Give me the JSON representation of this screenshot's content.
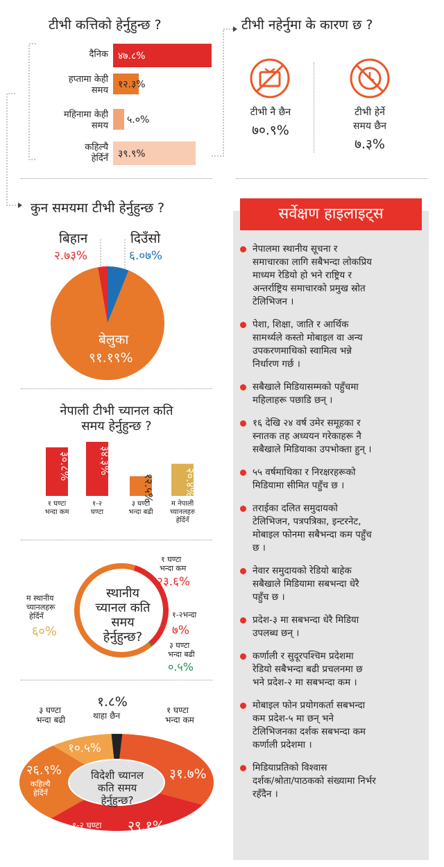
{
  "colors": {
    "red": "#e02a2a",
    "orange": "#e8782a",
    "light_orange": "#f2a574",
    "pale_orange": "#f8ccb3",
    "blue": "#1f6fb5",
    "gold": "#dcb050",
    "green": "#2a8a5a",
    "black": "#222222",
    "panel_red": "#e63228"
  },
  "q_frequency": {
    "title": "टीभी कत्तिको हेर्नुहुन्छ ?",
    "icon": "chevron-right-icon"
  },
  "q_reasons": {
    "title": "टीभी नहेर्नुमा के कारण छ ?",
    "items": [
      {
        "label": "टीभी नै छैन",
        "value": "७०.९%",
        "icon": "no-tv-icon"
      },
      {
        "label_line1": "टीभी हेर्ने",
        "label_line2": "समय छैन",
        "value": "७.३%",
        "icon": "no-clock-icon"
      }
    ]
  },
  "q_time": {
    "title": "कुन समयमा टीभी हेर्नुहुन्छ ?",
    "labels": [
      {
        "name": "बिहान",
        "value": "२.७३%"
      },
      {
        "name": "दिउँसो",
        "value": "६.०७%"
      },
      {
        "name": "बेलुका",
        "value": "९१.१९%"
      }
    ]
  },
  "q_nepali": {
    "title_line1": "नेपाली टीभी च्यानल कति",
    "title_line2": "समय हेर्नुहुन्छ ?"
  },
  "q_local": {
    "center": [
      "स्थानीय",
      "च्यानल कति",
      "समय",
      "हेर्नुहुन्छ?"
    ],
    "labels": [
      {
        "name_line1": "१ घण्टा",
        "name_line2": "भन्दा कम",
        "value": "२३.६%"
      },
      {
        "name_line1": "१-२भन्दा",
        "name_line2": "",
        "value": "७%"
      },
      {
        "name_line1": "३ घण्टा",
        "name_line2": "भन्दा बढी",
        "value": "०.५%"
      },
      {
        "name_line1": "म स्थानीय",
        "name_line2": "च्यानलहरू",
        "name_line3": "हेर्दिनँ",
        "value": "६०%"
      }
    ]
  },
  "q_foreign": {
    "center": [
      "विदेशी च्यानल",
      "कति समय",
      "हेर्नुहुन्छ?"
    ],
    "labels": [
      {
        "name_line1": "१ घण्टा",
        "name_line2": "भन्दा कम",
        "value": "३१.७%"
      },
      {
        "name": "१-२ घण्टा",
        "value": "२९.१%"
      },
      {
        "name_line1": "कहिल्यै",
        "name_line2": "हेर्दिनँ",
        "value": "२६.९%"
      },
      {
        "name_line1": "३ घण्टा",
        "name_line2": "भन्दा बढी",
        "value": "१०.५%"
      },
      {
        "name": "थाहा छैन",
        "value": "१.८%"
      }
    ]
  },
  "highlights": {
    "title": "सर्वेक्षण हाइलाइट्स",
    "items": [
      [
        "नेपालमा स्थानीय सूचना र",
        "समाचारका लागि सबैभन्दा लोकप्रिय",
        "माध्यम रेडियो हो भने राष्ट्रिय र",
        "अन्तर्राष्ट्रिय समाचारको प्रमुख स्रोत",
        "टेलिभिजन ।"
      ],
      [
        "पेशा, शिक्षा, जाति र आर्थिक",
        "सामर्थ्यले कस्तो मोबाइल वा अन्य",
        "उपकरणमाथिको स्वामित्व भन्ने",
        "निर्धारण गर्छ ।"
      ],
      [
        "सबैखाले मिडियासम्मको पहुँचमा",
        "महिलाहरू पछाडि छन् ।"
      ],
      [
        "१६ देखि २४ वर्ष उमेर समूहका र",
        "स्नातक तह अध्ययन गरेकाहरू नै",
        "सबैखाले मिडियाका उपभोक्ता हुन् ।"
      ],
      [
        "५५ वर्षमाथिका र निरक्षरहरूको",
        "मिडियामा सीमित पहुँच छ ।"
      ],
      [
        "तराईका दलित समुदायको",
        "टेलिभिजन, पत्रपत्रिका, इन्टरनेट,",
        "मोबाइल फोनमा सबैभन्दा कम पहुँच",
        "छ ।"
      ],
      [
        "नेवार समुदायको रेडियो बाहेक",
        "सबैखाले मिडियामा सबभन्दा धेरै",
        "पहुँच छ ।"
      ],
      [
        "प्रदेश-३ मा सबभन्दा धेरै मिडिया",
        "उपलब्ध छन् ।"
      ],
      [
        "कर्णाली र सुदूरपश्चिम प्रदेशमा",
        "रेडियो सबैभन्दा बढी प्रचलनमा छ",
        "भने प्रदेश-२ मा सबभन्दा कम ।"
      ],
      [
        "मोबाइल फोन प्रयोगकर्ता सबभन्दा",
        "कम प्रदेश-५ मा छन् भने",
        "टेलिभिजनका दर्शक सबभन्दा कम",
        "कर्णाली प्रदेशमा ।"
      ],
      [
        "मिडियाप्रतिको विश्वास",
        "दर्शक/श्रोता/पाठकको संख्यामा निर्भर",
        "रहँदैन ।"
      ]
    ]
  },
  "chart_data": [
    {
      "type": "bar",
      "orientation": "horizontal",
      "categories": [
        "दैनिक",
        "हप्तामा केही समय",
        "महिनामा केही समय",
        "कहिल्यै हेर्दिनँ"
      ],
      "values": [
        47.8,
        12.3,
        5.0,
        39.9
      ],
      "value_labels": [
        "४७.८%",
        "१२.३%",
        "५.०%",
        "३९.९%"
      ],
      "colors": [
        "#e02a2a",
        "#e8782a",
        "#f2a574",
        "#f8ccb3"
      ]
    },
    {
      "type": "pie",
      "categories": [
        "बेलुका",
        "बिहान",
        "दिउँसो"
      ],
      "values": [
        91.19,
        2.73,
        6.07
      ],
      "colors": [
        "#e8782a",
        "#e02a2a",
        "#1f6fb5"
      ]
    },
    {
      "type": "bar",
      "orientation": "vertical",
      "categories": [
        [
          "१ घण्टा",
          "भन्दा कम"
        ],
        [
          "१-२",
          "घण्टा"
        ],
        [
          "३ घण्टा",
          "भन्दा बढी"
        ],
        [
          "म नेपाली",
          "च्यानलहरु",
          "हेर्दिनँ"
        ]
      ],
      "values": [
        30.8,
        34.3,
        12.5,
        20.4
      ],
      "value_labels": [
        "३०.८%",
        "३४.३%",
        "१२.५%",
        "२०.४%"
      ],
      "colors": [
        "#e02a2a",
        "#e02a2a",
        "#e8782a",
        "#dcb050"
      ]
    },
    {
      "type": "pie",
      "subtype": "donut",
      "categories": [
        "म स्थानीय च्यानलहरू हेर्दिनँ",
        "१ घण्टा भन्दा कम",
        "१-२भन्दा",
        "३ घण्टा भन्दा बढी"
      ],
      "values": [
        60,
        23.6,
        7,
        0.5
      ],
      "colors": [
        "#e8782a",
        "#e02a2a",
        "#e02a2a",
        "#2a8a5a"
      ]
    },
    {
      "type": "pie",
      "subtype": "donut",
      "categories": [
        "१ घण्टा भन्दा कम",
        "१-२ घण्टा",
        "कहिल्यै हेर्दिनँ",
        "३ घण्टा भन्दा बढी",
        "थाहा छैन"
      ],
      "values": [
        31.7,
        29.1,
        26.9,
        10.5,
        1.8
      ],
      "colors": [
        "#e8582a",
        "#e02a2a",
        "#e8782a",
        "#f2a24a",
        "#222222"
      ]
    }
  ]
}
